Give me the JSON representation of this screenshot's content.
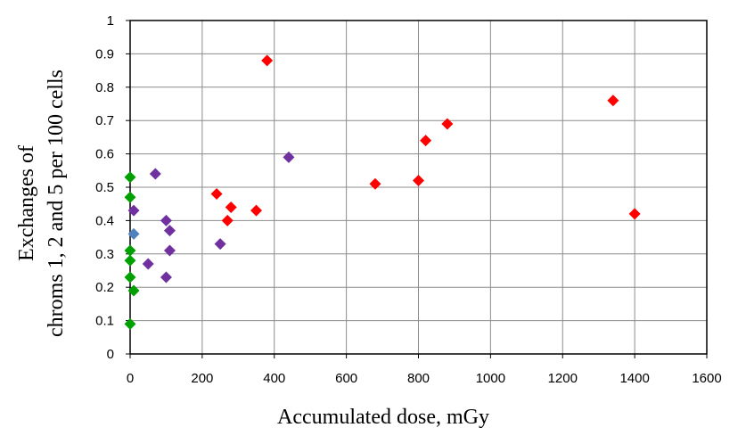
{
  "chart_data": {
    "type": "scatter",
    "title": "",
    "xlabel": "Accumulated  dose, mGy",
    "ylabel_lines": [
      "Exchanges  of",
      "chroms 1, 2 and 5 per 100 cells"
    ],
    "xlim": [
      0,
      1600
    ],
    "ylim": [
      0,
      1
    ],
    "xticks": [
      0,
      200,
      400,
      600,
      800,
      1000,
      1200,
      1400,
      1600
    ],
    "yticks": [
      0,
      0.1,
      0.2,
      0.3,
      0.4,
      0.5,
      0.6,
      0.7,
      0.8,
      0.9,
      1
    ],
    "grid": true,
    "legend": "none",
    "marker": "diamond",
    "series": [
      {
        "color": "#00a000",
        "points": [
          [
            0,
            0.53
          ],
          [
            0,
            0.47
          ],
          [
            0,
            0.31
          ],
          [
            0,
            0.28
          ],
          [
            0,
            0.23
          ],
          [
            0,
            0.09
          ],
          [
            10,
            0.19
          ]
        ]
      },
      {
        "color": "#4f81bd",
        "points": [
          [
            10,
            0.36
          ]
        ]
      },
      {
        "color": "#7030a0",
        "points": [
          [
            10,
            0.43
          ],
          [
            70,
            0.54
          ],
          [
            100,
            0.4
          ],
          [
            110,
            0.37
          ],
          [
            110,
            0.31
          ],
          [
            50,
            0.27
          ],
          [
            100,
            0.23
          ],
          [
            250,
            0.33
          ],
          [
            440,
            0.59
          ]
        ]
      },
      {
        "color": "#ff0000",
        "points": [
          [
            380,
            0.88
          ],
          [
            240,
            0.48
          ],
          [
            280,
            0.44
          ],
          [
            270,
            0.4
          ],
          [
            350,
            0.43
          ],
          [
            680,
            0.51
          ],
          [
            800,
            0.52
          ],
          [
            820,
            0.64
          ],
          [
            880,
            0.69
          ],
          [
            1340,
            0.76
          ],
          [
            1400,
            0.42
          ]
        ]
      }
    ]
  }
}
